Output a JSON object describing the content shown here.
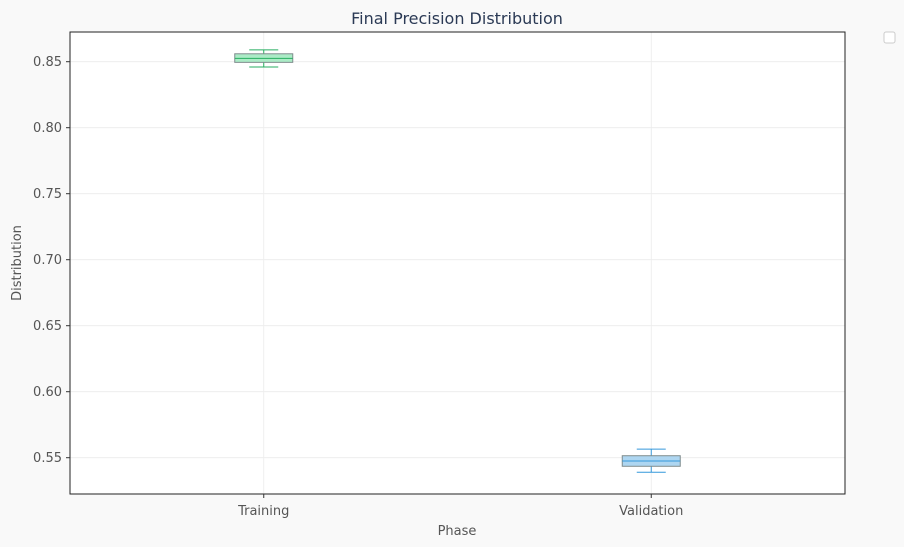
{
  "chart_data": {
    "type": "box",
    "title": "Final Precision Distribution",
    "xlabel": "Phase",
    "ylabel": "Distribution",
    "categories": [
      "Training",
      "Validation"
    ],
    "boxes": [
      {
        "category": "Training",
        "whisker_low": 0.846,
        "q1": 0.8495,
        "median": 0.8525,
        "q3": 0.856,
        "whisker_high": 0.859,
        "fill": "#abebc6",
        "stroke": "#27ae60"
      },
      {
        "category": "Validation",
        "whisker_low": 0.539,
        "q1": 0.5435,
        "median": 0.5475,
        "q3": 0.5515,
        "whisker_high": 0.5565,
        "fill": "#aed6f1",
        "stroke": "#3498db"
      }
    ],
    "ylim": [
      0.5225,
      0.8725
    ],
    "yticks": [
      "0.55",
      "0.60",
      "0.65",
      "0.70",
      "0.75",
      "0.80",
      "0.85"
    ],
    "grid": true,
    "legend": {
      "placement": "outside-top-right",
      "entries": []
    }
  }
}
